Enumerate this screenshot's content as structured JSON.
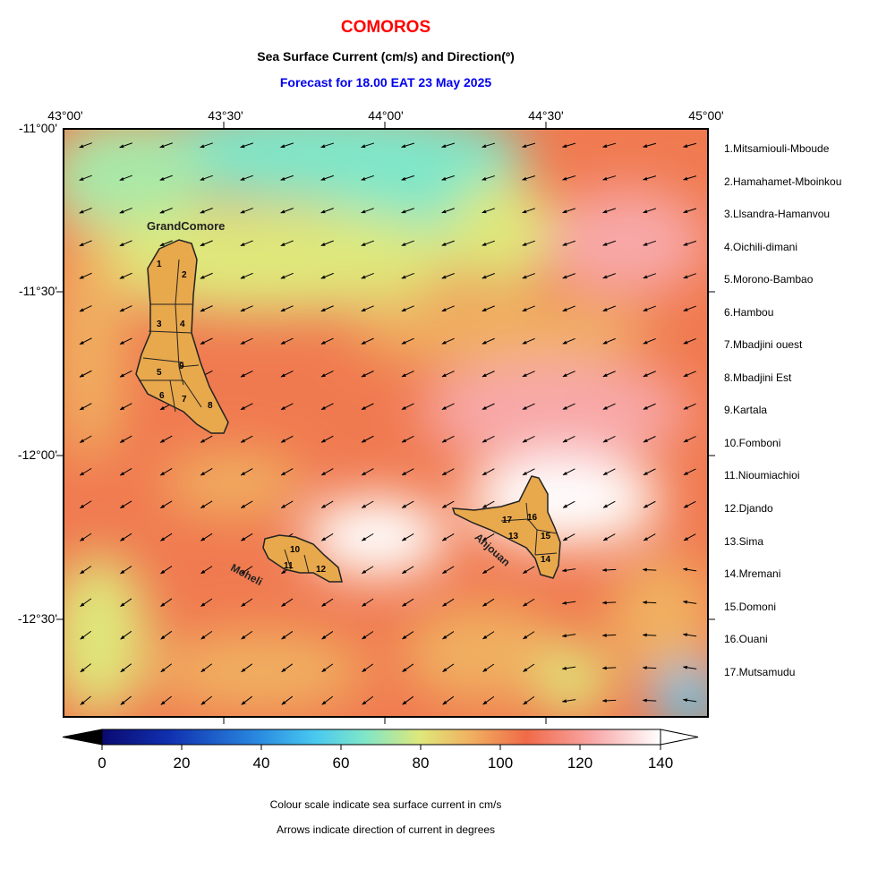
{
  "header": {
    "title": "COMOROS",
    "subtitle": "Sea Surface Current (cm/s) and Direction(º)",
    "forecast": "Forecast for  18.00 EAT 23 May 2025"
  },
  "axes": {
    "lon_ticks": [
      "43°00'",
      "43°30'",
      "44°00'",
      "44°30'",
      "45°00'"
    ],
    "lat_ticks": [
      "-11°00'",
      "-11°30'",
      "-12°00'",
      "-12°30'"
    ]
  },
  "islands": {
    "grand_comore": "GrandComore",
    "moheli": "Moheli",
    "anjouan": "Anjouan"
  },
  "region_numbers": [
    "1",
    "2",
    "3",
    "4",
    "5",
    "6",
    "7",
    "8",
    "9",
    "10",
    "11",
    "12",
    "13",
    "14",
    "15",
    "16",
    "17"
  ],
  "legend": [
    "1.Mitsamiouli-Mboude",
    "2.Hamahamet-Mboinkou",
    "3.Llsandra-Hamanvou",
    "4.Oichili-dimani",
    "5.Morono-Bambao",
    "6.Hambou",
    "7.Mbadjini ouest",
    "8.Mbadjini Est",
    "9.Kartala",
    "10.Fomboni",
    "11.Nioumiachioi",
    "12.Djando",
    "13.Sima",
    "14.Mremani",
    "15.Domoni",
    "16.Ouani",
    "17.Mutsamudu"
  ],
  "colorbar": {
    "ticks": [
      "0",
      "20",
      "40",
      "60",
      "80",
      "100",
      "120",
      "140"
    ],
    "min": 0,
    "max": 140,
    "colors": [
      "#0a0a70",
      "#1030b0",
      "#2a8ae0",
      "#48c8f0",
      "#7fe6c8",
      "#dfe87a",
      "#f0b060",
      "#f06a48",
      "#f8a8a8",
      "#ffffff"
    ]
  },
  "notes": {
    "line1": "Colour scale indicate sea surface current in cm/s",
    "line2": "Arrows indicate direction of current in degrees"
  },
  "colors": {
    "title": "#ff0000",
    "forecast": "#0000ee",
    "land": "#e8a84c"
  }
}
